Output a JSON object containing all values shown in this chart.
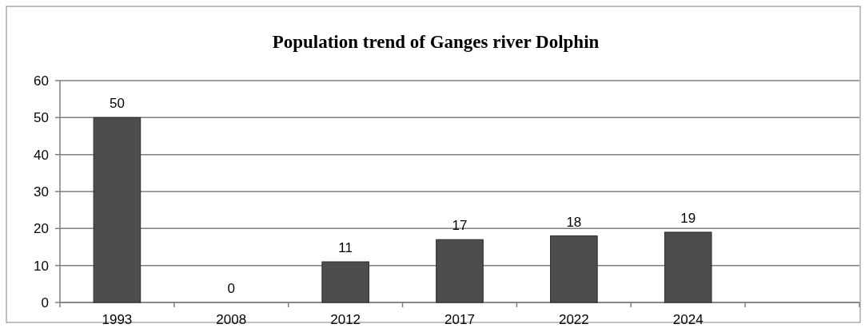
{
  "chart_data": {
    "type": "bar",
    "title": "Population trend of Ganges river Dolphin",
    "categories": [
      "1993",
      "2008",
      "2012",
      "2017",
      "2022",
      "2024",
      null
    ],
    "values": [
      50,
      0,
      11,
      17,
      18,
      19,
      null
    ],
    "color": "#4d4d4d",
    "ylim": [
      0,
      60
    ],
    "yticks": [
      0,
      10,
      20,
      30,
      40,
      50,
      60
    ],
    "grid": "y",
    "data_labels": true
  }
}
